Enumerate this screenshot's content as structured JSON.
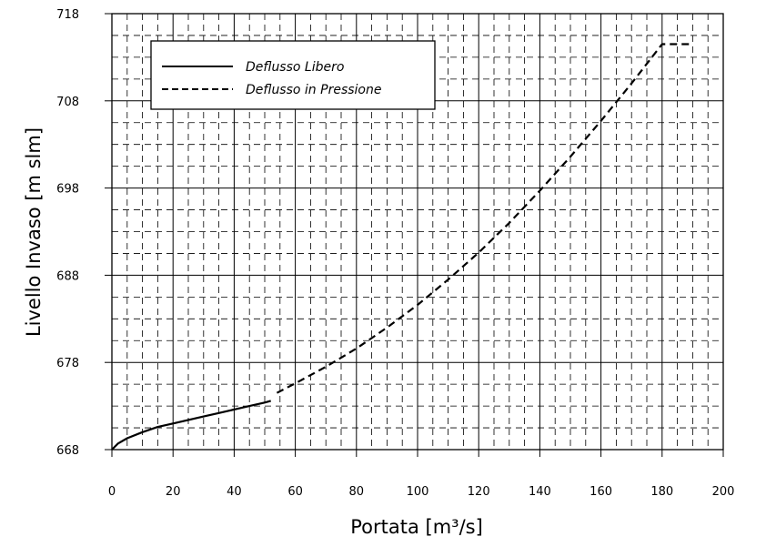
{
  "chart_data": {
    "type": "line",
    "title": "",
    "xlabel": "Portata [m³/s]",
    "ylabel": "Livello Invaso [m slm]",
    "xlim": [
      0,
      200
    ],
    "ylim": [
      668,
      718
    ],
    "x_ticks": [
      0,
      20,
      40,
      60,
      80,
      100,
      120,
      140,
      160,
      180,
      200
    ],
    "y_ticks": [
      668,
      678,
      688,
      698,
      708,
      718
    ],
    "grid": true,
    "legend_position": "top-left",
    "series": [
      {
        "name": "Deflusso Libero",
        "style": "solid",
        "color": "#000000",
        "x": [
          0,
          2,
          5,
          10,
          15,
          20,
          25,
          30,
          35,
          40,
          45,
          50,
          52
        ],
        "y": [
          668.0,
          668.7,
          669.3,
          670.0,
          670.6,
          671.0,
          671.4,
          671.8,
          672.2,
          672.6,
          673.0,
          673.4,
          673.6
        ]
      },
      {
        "name": "Deflusso in Pressione",
        "style": "dashed",
        "color": "#000000",
        "x": [
          54,
          60,
          70,
          80,
          90,
          100,
          110,
          120,
          130,
          140,
          150,
          160,
          170,
          180,
          190
        ],
        "y": [
          674.5,
          675.6,
          677.5,
          679.6,
          682.0,
          684.6,
          687.5,
          690.6,
          694.0,
          697.7,
          701.6,
          705.7,
          710.0,
          714.5,
          714.5
        ]
      }
    ]
  }
}
